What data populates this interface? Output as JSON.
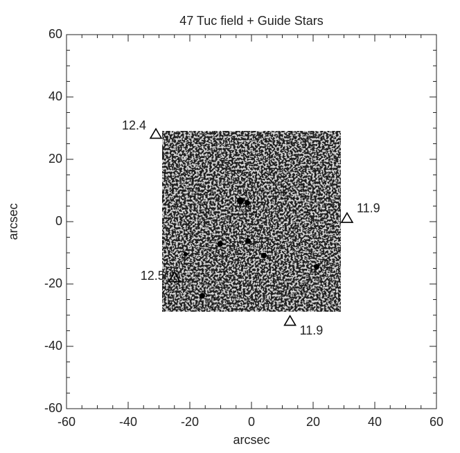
{
  "chart_data": {
    "type": "scatter",
    "title": "47 Tuc field  + Guide Stars",
    "x_label": "arcsec",
    "y_label": "arcsec",
    "x": [
      -31,
      -25,
      31,
      12.5
    ],
    "values": [
      28,
      -18,
      1,
      -32
    ],
    "magnitudes": [
      12.4,
      12.5,
      11.9,
      11.9
    ],
    "color": "#000000",
    "marker": "triangle",
    "xlim": [
      -60,
      60
    ],
    "ylim": [
      -60,
      60
    ],
    "xticks": [
      -60,
      -40,
      -20,
      0,
      20,
      40,
      60
    ],
    "yticks": [
      -60,
      -40,
      -20,
      0,
      20,
      40,
      60
    ]
  }
}
